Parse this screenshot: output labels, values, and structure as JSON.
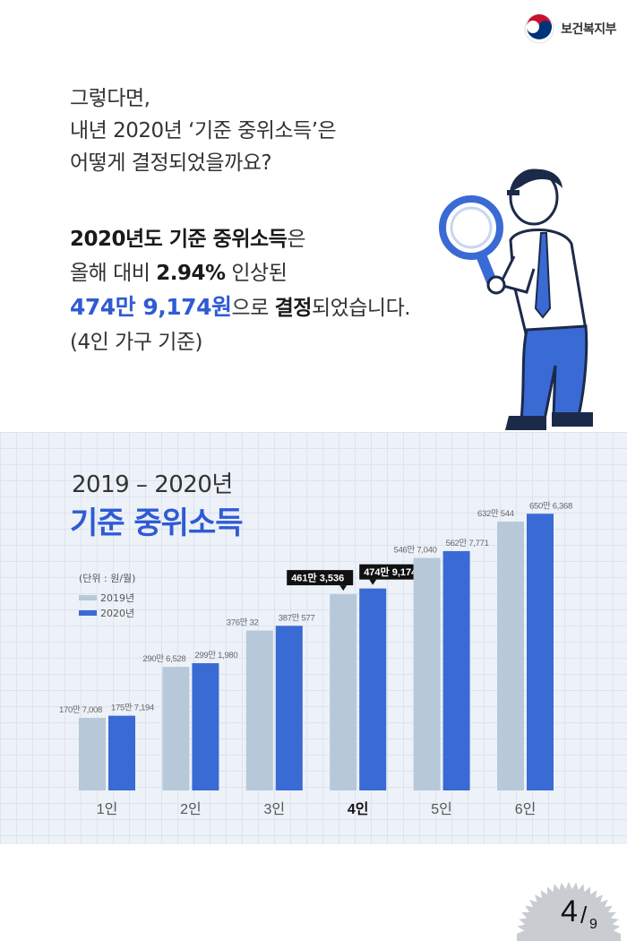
{
  "header": {
    "org_name": "보건복지부",
    "logo_colors": {
      "red": "#c8102e",
      "blue": "#003478"
    }
  },
  "intro": {
    "line1": "그렇다면,",
    "line2": "내년 2020년 ‘기준 중위소득’은",
    "line3": "어떻게 결정되었을까요?"
  },
  "result": {
    "line1_bold": "2020년도 기준 중위소득",
    "line1_rest": "은",
    "line2_pre": "올해 대비 ",
    "line2_bold": "2.94%",
    "line2_post": " 인상된",
    "line3_blue": "474만 9,174원",
    "line3_mid": "으로 ",
    "line3_bold": "결정",
    "line3_post": "되었습니다.",
    "line4": "(4인 가구 기준)"
  },
  "chart_data": {
    "type": "bar",
    "subtitle": "2019 – 2020년",
    "title": "기준 중위소득",
    "unit_label": "(단위 : 원/월)",
    "categories": [
      "1인",
      "2인",
      "3인",
      "4인",
      "5인",
      "6인"
    ],
    "series": [
      {
        "name": "2019년",
        "color": "#b7c9d8",
        "values": [
          1707008,
          2906528,
          3760032,
          4613536,
          5467040,
          6320544
        ],
        "labels": [
          "170만 7,008",
          "290만 6,528",
          "376만 32",
          "461만 3,536",
          "546만 7,040",
          "632만 544"
        ]
      },
      {
        "name": "2020년",
        "color": "#3a6ad4",
        "values": [
          1757194,
          2991980,
          3870577,
          4749174,
          5627771,
          6506368
        ],
        "labels": [
          "175만 7,194",
          "299만 1,980",
          "387만 577",
          "474만 9,174",
          "562만 7,771",
          "650만 6,368"
        ]
      }
    ],
    "highlight_category": "4인",
    "grid": true
  },
  "page": {
    "current": "4",
    "total": "9"
  }
}
